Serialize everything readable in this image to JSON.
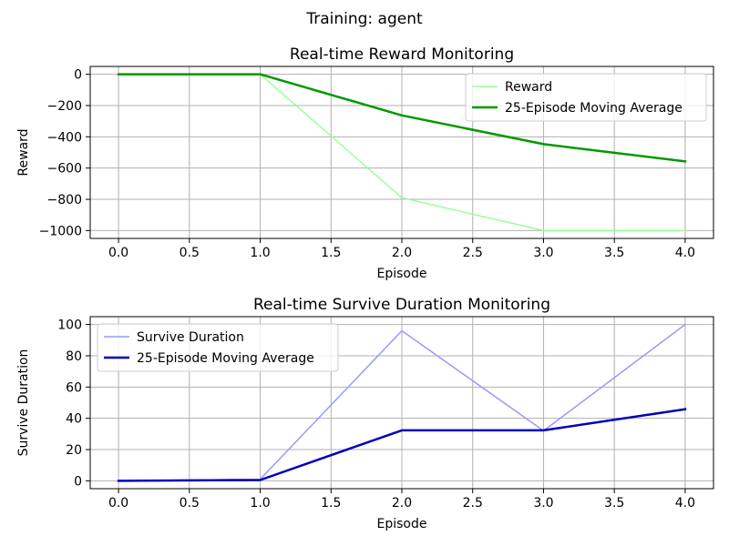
{
  "figure": {
    "suptitle": "Training: agent"
  },
  "chart_data": [
    {
      "type": "line",
      "title": "Real-time Reward Monitoring",
      "xlabel": "Episode",
      "ylabel": "Reward",
      "xlim": [
        -0.2,
        4.2
      ],
      "ylim": [
        -1050,
        50
      ],
      "xticks": [
        0,
        0.5,
        1,
        1.5,
        2,
        2.5,
        3,
        3.5,
        4
      ],
      "xtick_labels": [
        "0.0",
        "0.5",
        "1.0",
        "1.5",
        "2.0",
        "2.5",
        "3.0",
        "3.5",
        "4.0"
      ],
      "yticks": [
        0,
        -200,
        -400,
        -600,
        -800,
        -1000
      ],
      "ytick_labels": [
        "0",
        "−200",
        "−400",
        "−600",
        "−800",
        "−1000"
      ],
      "grid": true,
      "legend": "top-right",
      "x": [
        0,
        1,
        2,
        3,
        4
      ],
      "series": [
        {
          "name": "Reward",
          "values": [
            0,
            0,
            -790,
            -1000,
            -1000
          ],
          "color": "#99ff99",
          "width": 1.5
        },
        {
          "name": "25-Episode Moving Average",
          "values": [
            0,
            0,
            -263,
            -447,
            -557
          ],
          "color": "#009900",
          "width": 2.5
        }
      ]
    },
    {
      "type": "line",
      "title": "Real-time Survive Duration Monitoring",
      "xlabel": "Episode",
      "ylabel": "Survive Duration",
      "xlim": [
        -0.2,
        4.2
      ],
      "ylim": [
        -5,
        105
      ],
      "xticks": [
        0,
        0.5,
        1,
        1.5,
        2,
        2.5,
        3,
        3.5,
        4
      ],
      "xtick_labels": [
        "0.0",
        "0.5",
        "1.0",
        "1.5",
        "2.0",
        "2.5",
        "3.0",
        "3.5",
        "4.0"
      ],
      "yticks": [
        0,
        20,
        40,
        60,
        80,
        100
      ],
      "ytick_labels": [
        "0",
        "20",
        "40",
        "60",
        "80",
        "100"
      ],
      "grid": true,
      "legend": "top-left",
      "x": [
        0,
        1,
        2,
        3,
        4
      ],
      "series": [
        {
          "name": "Survive Duration",
          "values": [
            0,
            1,
            96,
            32,
            100
          ],
          "color": "#9999ff",
          "width": 1.5
        },
        {
          "name": "25-Episode Moving Average",
          "values": [
            0,
            0.5,
            32.3,
            32.3,
            45.8
          ],
          "color": "#0000bb",
          "width": 2.5
        }
      ]
    }
  ]
}
